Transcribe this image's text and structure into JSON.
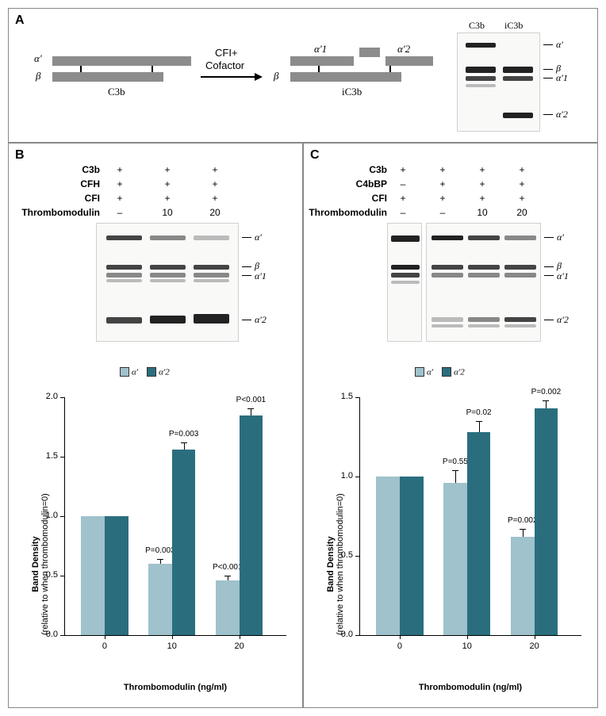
{
  "colors": {
    "light_bar": "#9fc2cc",
    "dark_bar": "#2a6e7e",
    "schematic_grey": "#8c8c8c"
  },
  "panelA": {
    "label": "A",
    "left_schematic": {
      "alpha_label": "α'",
      "beta_label": "β",
      "caption": "C3b"
    },
    "arrow_text_top": "CFI+",
    "arrow_text_bottom": "Cofactor",
    "right_schematic": {
      "alpha1_label": "α'1",
      "alpha2_label": "α'2",
      "beta_label": "β",
      "caption": "iC3b"
    },
    "blot_lanes": [
      "C3b",
      "iC3b"
    ],
    "blot_bands": [
      "α'",
      "β",
      "α'1",
      "α'2"
    ]
  },
  "panelB": {
    "label": "B",
    "conditions": {
      "rows": [
        "C3b",
        "CFH",
        "CFI",
        "Thrombomodulin"
      ],
      "values": [
        [
          "+",
          "+",
          "+"
        ],
        [
          "+",
          "+",
          "+"
        ],
        [
          "+",
          "+",
          "+"
        ],
        [
          "–",
          "10",
          "20"
        ]
      ]
    },
    "blot_bands": [
      "α'",
      "β",
      "α'1",
      "α'2"
    ],
    "legend": {
      "series1": "α'",
      "series2": "α'2"
    },
    "chart": {
      "type": "bar",
      "ylabel_line1": "Band Density",
      "ylabel_line2": "(relative to when thrombomodulin=0)",
      "xlabel": "Thrombomodulin (ng/ml)",
      "categories": [
        "0",
        "10",
        "20"
      ],
      "series": [
        {
          "name": "alpha_prime",
          "color": "#9fc2cc",
          "values": [
            1.0,
            0.6,
            0.46
          ],
          "errors": [
            0,
            0.04,
            0.04
          ],
          "pvals": [
            "",
            "P=0.003",
            "P<0.001"
          ]
        },
        {
          "name": "alpha_prime_2",
          "color": "#2a6e7e",
          "values": [
            1.0,
            1.56,
            1.85
          ],
          "errors": [
            0,
            0.06,
            0.06
          ],
          "pvals": [
            "",
            "P=0.003",
            "P<0.001"
          ]
        }
      ],
      "ylim": [
        0,
        2.0
      ],
      "ytick_step": 0.5,
      "bar_colors": [
        "#9fc2cc",
        "#2a6e7e"
      ]
    }
  },
  "panelC": {
    "label": "C",
    "conditions": {
      "rows": [
        "C3b",
        "C4bBP",
        "CFI",
        "Thrombomodulin"
      ],
      "values": [
        [
          "+",
          "+",
          "+",
          "+"
        ],
        [
          "–",
          "+",
          "+",
          "+"
        ],
        [
          "+",
          "+",
          "+",
          "+"
        ],
        [
          "–",
          "–",
          "10",
          "20"
        ]
      ]
    },
    "blot_bands": [
      "α'",
      "β",
      "α'1",
      "α'2"
    ],
    "legend": {
      "series1": "α'",
      "series2": "α'2"
    },
    "chart": {
      "type": "bar",
      "ylabel_line1": "Band Density",
      "ylabel_line2": "(relative to when thrombomodulin=0)",
      "xlabel": "Thrombomodulin (ng/ml)",
      "categories": [
        "0",
        "10",
        "20"
      ],
      "series": [
        {
          "name": "alpha_prime",
          "color": "#9fc2cc",
          "values": [
            1.0,
            0.96,
            0.62
          ],
          "errors": [
            0,
            0.08,
            0.05
          ],
          "pvals": [
            "",
            "P=0.55",
            "P=0.002"
          ]
        },
        {
          "name": "alpha_prime_2",
          "color": "#2a6e7e",
          "values": [
            1.0,
            1.28,
            1.43
          ],
          "errors": [
            0,
            0.07,
            0.05
          ],
          "pvals": [
            "",
            "P=0.02",
            "P=0.002"
          ]
        }
      ],
      "ylim": [
        0,
        1.5
      ],
      "ytick_step": 0.5,
      "bar_colors": [
        "#9fc2cc",
        "#2a6e7e"
      ]
    }
  }
}
